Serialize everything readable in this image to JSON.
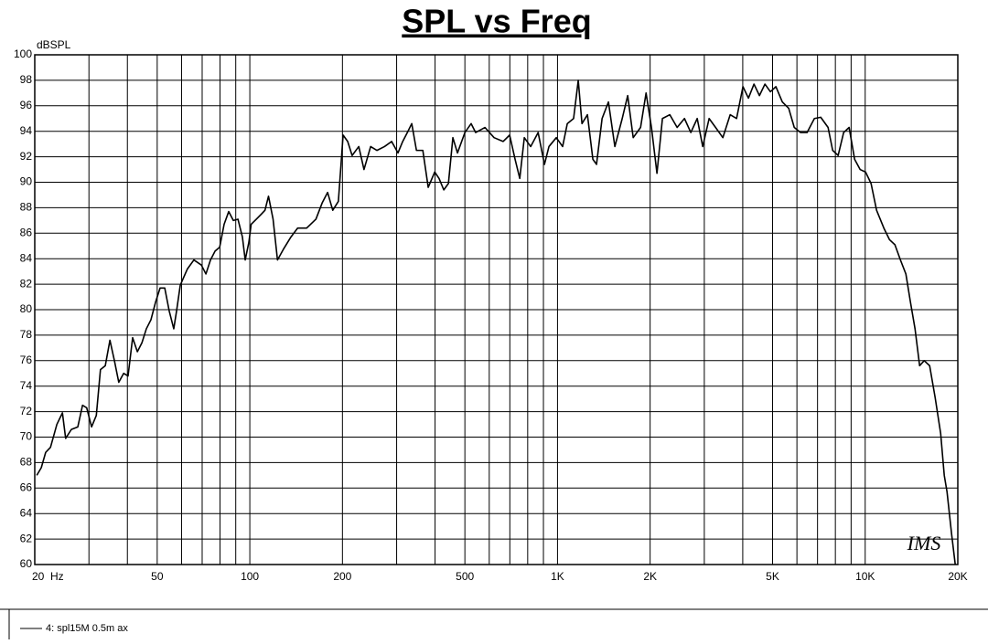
{
  "chart_data": {
    "type": "line",
    "title": "SPL vs Freq",
    "ylabel": "dBSPL",
    "annotation": "IMS",
    "xscale": "log",
    "grid": true,
    "xlim": [
      20,
      20000
    ],
    "ylim": [
      60,
      100
    ],
    "xticks": [
      {
        "value": 20,
        "label": "20  Hz"
      },
      50,
      100,
      200,
      500,
      {
        "value": 1000,
        "label": "1K"
      },
      {
        "value": 2000,
        "label": "2K"
      },
      {
        "value": 5000,
        "label": "5K"
      },
      {
        "value": 10000,
        "label": "10K"
      },
      {
        "value": 20000,
        "label": "20K"
      }
    ],
    "xminorticks": [
      30,
      40,
      60,
      70,
      80,
      90,
      300,
      400,
      600,
      700,
      800,
      900,
      3000,
      4000,
      6000,
      7000,
      8000,
      9000
    ],
    "yticks": [
      60,
      62,
      64,
      66,
      68,
      70,
      72,
      74,
      76,
      78,
      80,
      82,
      84,
      86,
      88,
      90,
      92,
      94,
      96,
      98,
      100
    ],
    "x": [
      20.3,
      21,
      21.7,
      22.5,
      23.6,
      24.6,
      25.2,
      26.3,
      27.6,
      28.6,
      29.5,
      30.6,
      31.7,
      32.7,
      33.9,
      35.1,
      36.3,
      37.5,
      38.9,
      40.2,
      41.6,
      43.1,
      44.6,
      46.1,
      47.7,
      49.4,
      51.1,
      52.9,
      54.7,
      56.6,
      57.8,
      59.4,
      60.6,
      62.7,
      65.8,
      69.6,
      72,
      74.5,
      77.1,
      79.8,
      82.5,
      85.4,
      88.4,
      91.5,
      94.6,
      96.6,
      99.3,
      101,
      105,
      109,
      112,
      115,
      119,
      123,
      129,
      136,
      143,
      153,
      164,
      172,
      179,
      186,
      194,
      201,
      208,
      215,
      226,
      235,
      247,
      259,
      274,
      289,
      303,
      314,
      325,
      336,
      348,
      365,
      380,
      399,
      412,
      427,
      442,
      457,
      473,
      500,
      524,
      542,
      581,
      622,
      666,
      699,
      728,
      754,
      780,
      818,
      865,
      907,
      938,
      991,
      1039,
      1076,
      1128,
      1168,
      1201,
      1251,
      1303,
      1339,
      1396,
      1464,
      1536,
      1623,
      1691,
      1762,
      1862,
      1940,
      2020,
      2105,
      2193,
      2317,
      2448,
      2586,
      2712,
      2845,
      2965,
      3110,
      3264,
      3447,
      3641,
      3819,
      4006,
      4174,
      4351,
      4532,
      4723,
      4920,
      5127,
      5378,
      5642,
      5881,
      6168,
      6473,
      6838,
      7170,
      7574,
      7840,
      8167,
      8511,
      8867,
      9239,
      9627,
      10030,
      10450,
      10890,
      11500,
      11990,
      12490,
      13020,
      13560,
      14030,
      14520,
      15030,
      15550,
      16200,
      16880,
      17590,
      18070,
      18450,
      19090,
      19620
    ],
    "series": [
      {
        "name": "4: spl15M 0.5m ax",
        "color": "#000000",
        "values": [
          67.0,
          67.6,
          68.8,
          69.2,
          71.0,
          71.9,
          69.9,
          70.6,
          70.8,
          72.5,
          72.3,
          70.8,
          71.7,
          75.3,
          75.6,
          77.6,
          76.0,
          74.3,
          75.0,
          74.8,
          77.8,
          76.7,
          77.4,
          78.5,
          79.2,
          80.6,
          81.7,
          81.7,
          79.9,
          78.5,
          79.9,
          81.9,
          82.4,
          83.2,
          83.9,
          83.5,
          82.8,
          83.9,
          84.6,
          84.9,
          86.7,
          87.7,
          87.0,
          87.1,
          85.7,
          83.9,
          85.3,
          86.7,
          87.1,
          87.5,
          87.8,
          88.9,
          87.1,
          83.9,
          84.8,
          85.7,
          86.4,
          86.4,
          87.1,
          88.4,
          89.2,
          87.8,
          88.5,
          93.7,
          93.2,
          92.1,
          92.8,
          91.0,
          92.8,
          92.5,
          92.8,
          93.2,
          92.3,
          93.2,
          93.9,
          94.6,
          92.5,
          92.5,
          89.6,
          90.8,
          90.3,
          89.4,
          89.9,
          93.5,
          92.3,
          93.9,
          94.6,
          93.9,
          94.3,
          93.5,
          93.2,
          93.7,
          91.8,
          90.3,
          93.5,
          92.8,
          93.9,
          91.4,
          92.8,
          93.5,
          92.8,
          94.6,
          95.0,
          98.0,
          94.6,
          95.3,
          91.8,
          91.4,
          95.0,
          96.3,
          92.8,
          95.0,
          96.8,
          93.5,
          94.3,
          97.0,
          94.3,
          90.7,
          95.0,
          95.3,
          94.3,
          95.0,
          93.9,
          95.0,
          92.8,
          95.0,
          94.3,
          93.5,
          95.3,
          95.0,
          97.5,
          96.6,
          97.7,
          96.8,
          97.7,
          97.1,
          97.5,
          96.3,
          95.8,
          94.3,
          93.9,
          93.9,
          95.0,
          95.1,
          94.3,
          92.5,
          92.1,
          93.9,
          94.3,
          91.8,
          91.0,
          90.8,
          89.9,
          87.8,
          86.4,
          85.5,
          85.1,
          83.9,
          82.8,
          80.6,
          78.5,
          75.6,
          76.0,
          75.6,
          73.1,
          70.3,
          67.0,
          65.7,
          62.4,
          60.0
        ]
      }
    ]
  }
}
